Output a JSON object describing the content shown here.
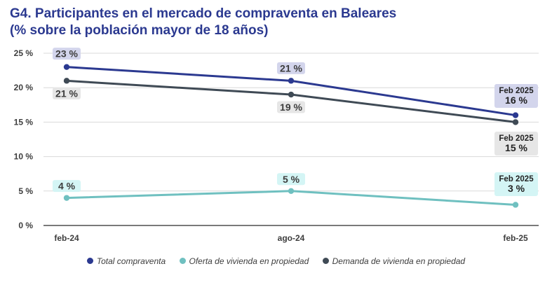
{
  "title_line1": "G4. Participantes en el mercado de compraventa en Baleares",
  "title_line2": "(% sobre la población mayor de 18 años)",
  "chart_data": {
    "type": "line",
    "categories": [
      "feb-24",
      "ago-24",
      "feb-25"
    ],
    "ylim": [
      0,
      25
    ],
    "yticks": [
      0,
      5,
      10,
      15,
      20,
      25
    ],
    "ytick_labels": [
      "0 %",
      "5 %",
      "10 %",
      "15 %",
      "20 %",
      "25 %"
    ],
    "grid": true,
    "legend_position": "bottom",
    "series": [
      {
        "name": "Total compraventa",
        "values": [
          23,
          21,
          16
        ],
        "labels": [
          "23 %",
          "21 %",
          "16 %"
        ],
        "color": "#2b3990",
        "label_bg": "#d3d5ec",
        "end_caption": "Feb 2025"
      },
      {
        "name": "Oferta de vivienda en propiedad",
        "values": [
          4,
          5,
          3
        ],
        "labels": [
          "4 %",
          "5 %",
          "3 %"
        ],
        "color": "#6fc0c0",
        "label_bg": "#d4f5f5",
        "end_caption": "Feb 2025"
      },
      {
        "name": "Demanda de vivienda en propiedad",
        "values": [
          21,
          19,
          15
        ],
        "labels": [
          "21 %",
          "19 %",
          "15 %"
        ],
        "color": "#3f4a55",
        "label_bg": "#e6e6e6",
        "end_caption": "Feb 2025"
      }
    ]
  }
}
